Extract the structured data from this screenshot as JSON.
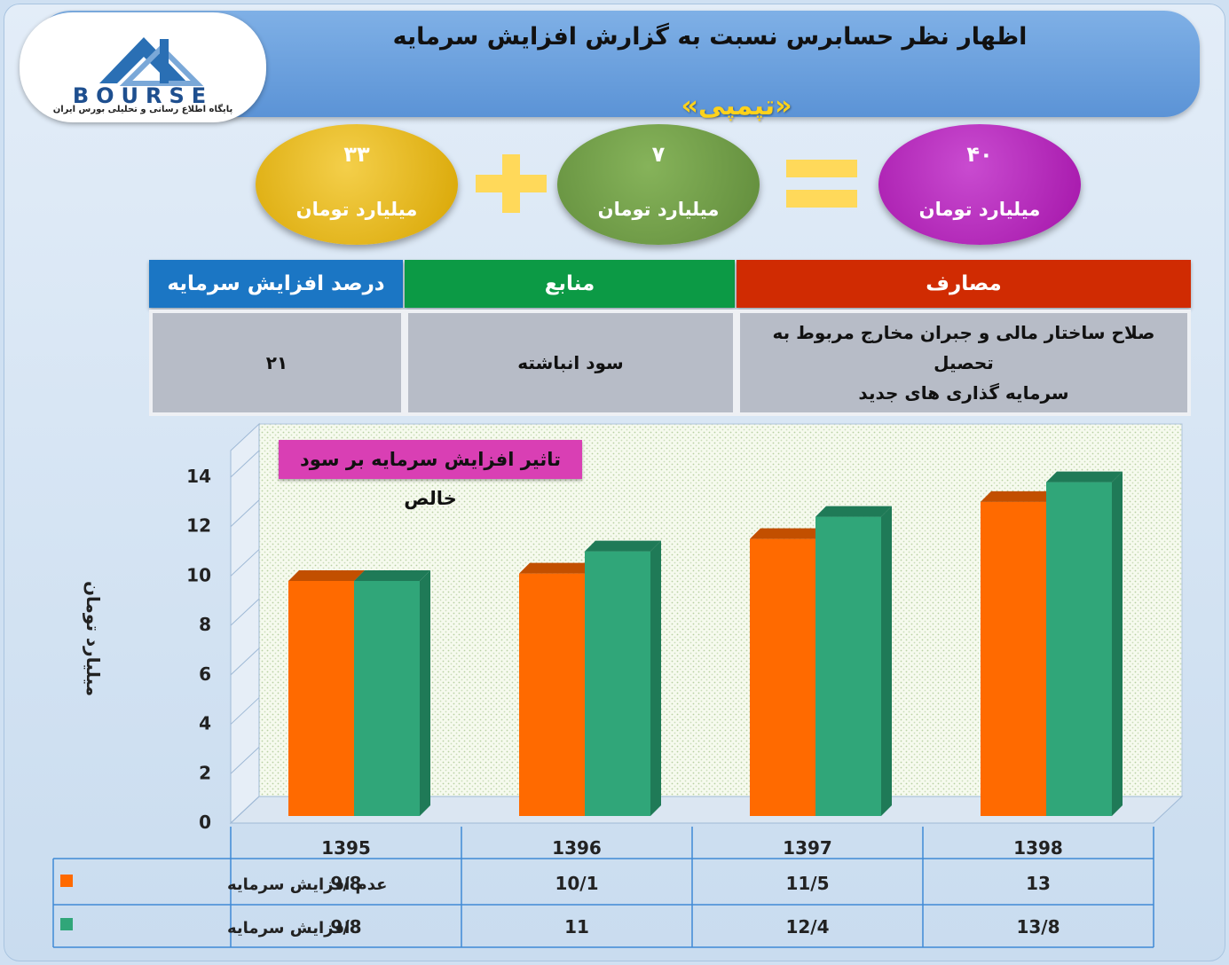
{
  "header": {
    "title": "اظهار نظر حسابرس نسبت به گزارش افزایش سرمایه",
    "subtitle": "«تپمپی»"
  },
  "logo": {
    "text": "BOURSE",
    "tagline": "پایگاه اطلاع رسانی و تحلیلی بورس ایران"
  },
  "equation": {
    "left": {
      "value": "۳۳",
      "unit": "میلیارد تومان",
      "color": "#d7a400"
    },
    "middle": {
      "value": "۷",
      "unit": "میلیارد تومان",
      "color": "#5f8a3a"
    },
    "right": {
      "value": "۴۰",
      "unit": "میلیارد تومان",
      "color": "#a313a8"
    }
  },
  "table": {
    "headers": {
      "percent": "درصد افزایش سرمایه",
      "sources": "منابع",
      "uses": "مصارف"
    },
    "values": {
      "percent": "۲۱",
      "sources": "سود انباشته",
      "uses_line1": "صلاح ساختار مالی و جبران مخارج مربوط به تحصیل",
      "uses_line2": "سرمایه گذاری های جدید"
    },
    "colors": {
      "percent": "#1b76c4",
      "sources": "#0c9a45",
      "uses": "#d02b02"
    }
  },
  "chart_data": {
    "type": "bar",
    "title": "تاثیر افزایش سرمایه بر سود خالص",
    "ylabel": "میلیارد تومان",
    "ylim": [
      0,
      14
    ],
    "yticks": [
      "0",
      "2",
      "4",
      "6",
      "8",
      "10",
      "12",
      "14"
    ],
    "categories": [
      "1395",
      "1396",
      "1397",
      "1398"
    ],
    "series": [
      {
        "name": "عدم افزایش سرمایه",
        "color": "#ff6a00",
        "values": [
          9.8,
          10.1,
          11.5,
          13
        ],
        "labels": [
          "9/8",
          "10/1",
          "11/5",
          "13"
        ]
      },
      {
        "name": "افزایش سرمایه",
        "color": "#30a679",
        "values": [
          9.8,
          11,
          12.4,
          13.8
        ],
        "labels": [
          "9/8",
          "11",
          "12/4",
          "13/8"
        ]
      }
    ]
  }
}
